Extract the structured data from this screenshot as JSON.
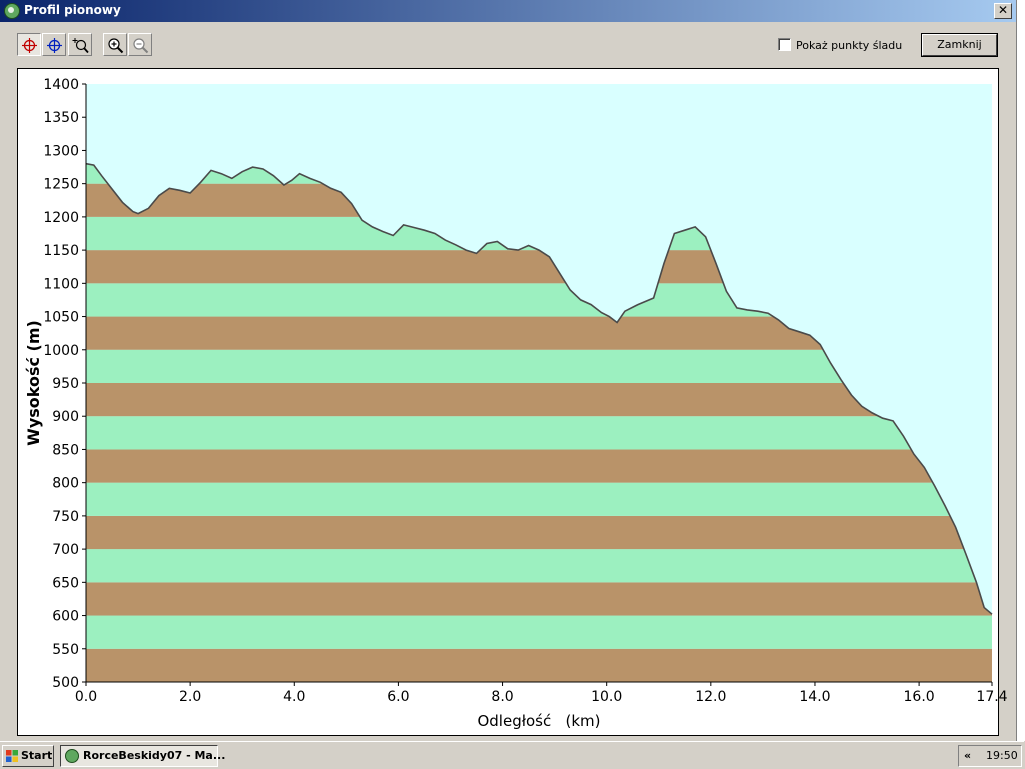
{
  "window": {
    "title": "Profil pionowy",
    "close_label": "✕"
  },
  "toolbar": {
    "buttons": [
      {
        "name": "crosshair-red-icon",
        "pressed": true
      },
      {
        "name": "crosshair-blue-icon",
        "pressed": false
      },
      {
        "name": "zoom-window-icon",
        "pressed": false
      },
      {
        "name": "zoom-in-icon",
        "pressed": false
      },
      {
        "name": "zoom-out-icon",
        "pressed": false
      }
    ],
    "show_points_label": "Pokaż punkty śladu",
    "show_points_checked": false,
    "close_button_label": "Zamknij"
  },
  "chart_data": {
    "type": "area",
    "title": "",
    "xlabel": "Odległość   (km)",
    "ylabel": "Wysokość (m)",
    "xlim": [
      0,
      17.4
    ],
    "ylim": [
      500,
      1400
    ],
    "xticks": [
      "0.0",
      "2.0",
      "4.0",
      "6.0",
      "8.0",
      "10.0",
      "12.0",
      "14.0",
      "16.0",
      "17.4"
    ],
    "xtick_values": [
      0,
      2,
      4,
      6,
      8,
      10,
      12,
      14,
      16,
      17.4
    ],
    "yticks": [
      500,
      550,
      600,
      650,
      700,
      750,
      800,
      850,
      900,
      950,
      1000,
      1050,
      1100,
      1150,
      1200,
      1250,
      1300,
      1350,
      1400
    ],
    "band_step": 50,
    "colors": {
      "sky": "#d9ffff",
      "band_light": "#9cf0c0",
      "band_dark": "#b99369",
      "line": "#4a4a4a"
    },
    "grid": false,
    "series": [
      {
        "x": [
          0.0,
          0.15,
          0.3,
          0.5,
          0.7,
          0.9,
          1.0,
          1.2,
          1.4,
          1.6,
          1.8,
          2.0,
          2.2,
          2.4,
          2.6,
          2.8,
          3.0,
          3.2,
          3.4,
          3.6,
          3.8,
          3.95,
          4.1,
          4.3,
          4.5,
          4.7,
          4.9,
          5.1,
          5.3,
          5.5,
          5.7,
          5.9,
          6.1,
          6.3,
          6.5,
          6.7,
          6.9,
          7.1,
          7.3,
          7.5,
          7.7,
          7.9,
          8.1,
          8.3,
          8.5,
          8.7,
          8.9,
          9.1,
          9.3,
          9.5,
          9.7,
          9.9,
          10.05,
          10.2,
          10.35,
          10.6,
          10.9,
          11.1,
          11.3,
          11.5,
          11.7,
          11.9,
          12.1,
          12.3,
          12.5,
          12.7,
          12.9,
          13.1,
          13.3,
          13.5,
          13.7,
          13.9,
          14.1,
          14.3,
          14.5,
          14.7,
          14.9,
          15.1,
          15.3,
          15.5,
          15.7,
          15.9,
          16.1,
          16.3,
          16.5,
          16.7,
          16.9,
          17.1,
          17.25,
          17.4
        ],
        "y": [
          1280,
          1278,
          1262,
          1242,
          1222,
          1208,
          1205,
          1213,
          1232,
          1243,
          1240,
          1236,
          1252,
          1270,
          1265,
          1258,
          1268,
          1275,
          1272,
          1262,
          1248,
          1255,
          1265,
          1258,
          1252,
          1243,
          1237,
          1220,
          1195,
          1185,
          1178,
          1172,
          1188,
          1184,
          1180,
          1175,
          1165,
          1158,
          1150,
          1145,
          1160,
          1163,
          1152,
          1150,
          1157,
          1150,
          1140,
          1115,
          1090,
          1075,
          1068,
          1056,
          1050,
          1041,
          1058,
          1068,
          1078,
          1130,
          1175,
          1180,
          1185,
          1170,
          1130,
          1088,
          1063,
          1060,
          1058,
          1055,
          1045,
          1032,
          1027,
          1022,
          1008,
          980,
          955,
          932,
          915,
          905,
          897,
          893,
          870,
          843,
          823,
          795,
          765,
          733,
          692,
          650,
          612,
          602
        ]
      }
    ]
  },
  "taskbar": {
    "start_label": "Start",
    "task_label": "RorceBeskidy07 - Ma...",
    "tray_arrow": "«",
    "clock": "19:50"
  }
}
